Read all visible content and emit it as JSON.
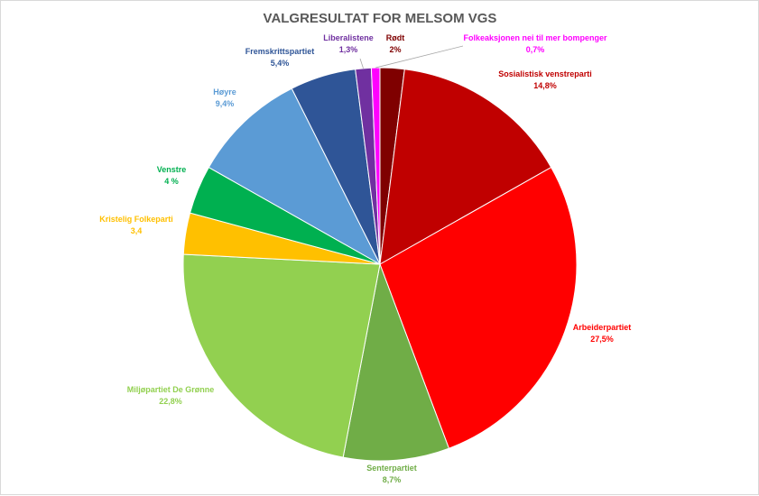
{
  "chart_data": {
    "type": "pie",
    "title": "VALGRESULTAT FOR MELSOM VGS",
    "slices": [
      {
        "name": "Rødt",
        "value": 2,
        "label": "2%",
        "color": "#7f0000"
      },
      {
        "name": "Sosialistisk  venstreparti",
        "value": 14.8,
        "label": "14,8%",
        "color": "#c00000"
      },
      {
        "name": "Arbeiderpartiet",
        "value": 27.5,
        "label": "27,5%",
        "color": "#ff0000"
      },
      {
        "name": "Senterpartiet",
        "value": 8.7,
        "label": "8,7%",
        "color": "#70ad47"
      },
      {
        "name": "Miljøpartiet  De Grønne",
        "value": 22.8,
        "label": "22,8%",
        "color": "#92d050"
      },
      {
        "name": "Kristelig  Folkeparti",
        "value": 3.4,
        "label": "3,4",
        "color": "#ffc000"
      },
      {
        "name": "Venstre",
        "value": 4,
        "label": "4 %",
        "color": "#00b050"
      },
      {
        "name": "Høyre",
        "value": 9.4,
        "label": "9,4%",
        "color": "#5b9bd5"
      },
      {
        "name": "Fremskrittspartiet",
        "value": 5.4,
        "label": "5,4%",
        "color": "#2f5597"
      },
      {
        "name": "Liberalistene",
        "value": 1.3,
        "label": "1,3%",
        "color": "#7030a0"
      },
      {
        "name": "Folkeaksjonen nei til  mer bompenger",
        "value": 0.7,
        "label": "0,7%",
        "color": "#ff00ff"
      }
    ],
    "label_colors": [
      "#7f0000",
      "#c00000",
      "#ff0000",
      "#70ad47",
      "#92d050",
      "#ffc000",
      "#00b050",
      "#5b9bd5",
      "#2f5597",
      "#7030a0",
      "#ff00ff"
    ]
  }
}
